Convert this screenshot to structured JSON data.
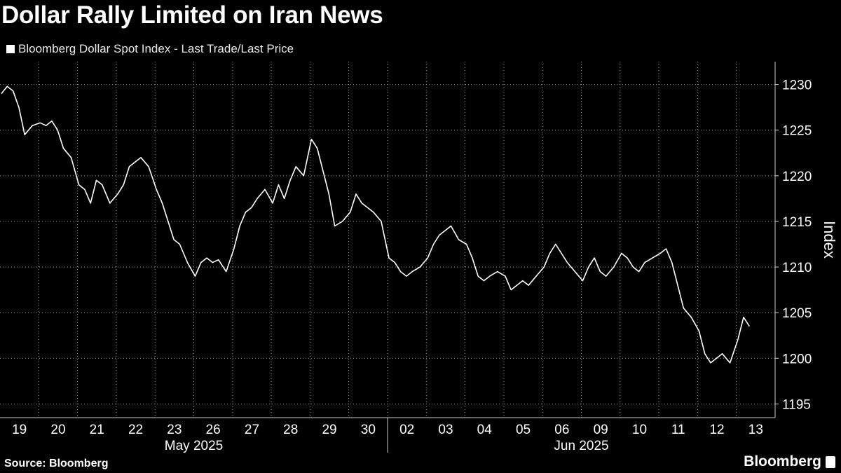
{
  "title": "Dollar Rally Limited on Iran News",
  "legend_label": "Bloomberg Dollar Spot Index - Last Trade/Last Price",
  "source": "Source: Bloomberg",
  "brand": "Bloomberg",
  "colors": {
    "background": "#000000",
    "line": "#ffffff",
    "grid": "#9a9a9a"
  },
  "chart_data": {
    "type": "line",
    "ylabel": "Index",
    "ylim": [
      1193.5,
      1232.5
    ],
    "yticks": [
      1195,
      1200,
      1205,
      1210,
      1215,
      1220,
      1225,
      1230
    ],
    "yaxis_side": "right",
    "grid": "dotted",
    "x_day_labels": [
      "19",
      "20",
      "21",
      "22",
      "23",
      "26",
      "27",
      "28",
      "29",
      "30",
      "02",
      "03",
      "04",
      "05",
      "06",
      "09",
      "10",
      "11",
      "12",
      "13"
    ],
    "month_labels": [
      {
        "label": "May 2025",
        "from_day": 0,
        "to_day": 9
      },
      {
        "label": "Jun 2025",
        "from_day": 10,
        "to_day": 19
      }
    ],
    "series": [
      {
        "values": [
          [
            0.0,
            1229.0
          ],
          [
            0.15,
            1229.8
          ],
          [
            0.3,
            1229.3
          ],
          [
            0.45,
            1227.5
          ],
          [
            0.6,
            1224.5
          ],
          [
            0.8,
            1225.5
          ],
          [
            1.0,
            1225.8
          ],
          [
            1.15,
            1225.5
          ],
          [
            1.3,
            1226.0
          ],
          [
            1.45,
            1225.0
          ],
          [
            1.6,
            1223.0
          ],
          [
            1.8,
            1222.0
          ],
          [
            2.0,
            1219.0
          ],
          [
            2.15,
            1218.5
          ],
          [
            2.3,
            1217.0
          ],
          [
            2.45,
            1219.5
          ],
          [
            2.6,
            1219.0
          ],
          [
            2.8,
            1217.0
          ],
          [
            3.0,
            1218.0
          ],
          [
            3.15,
            1219.0
          ],
          [
            3.3,
            1221.0
          ],
          [
            3.45,
            1221.5
          ],
          [
            3.6,
            1222.0
          ],
          [
            3.8,
            1221.0
          ],
          [
            4.0,
            1218.5
          ],
          [
            4.15,
            1217.0
          ],
          [
            4.3,
            1215.0
          ],
          [
            4.45,
            1213.0
          ],
          [
            4.6,
            1212.5
          ],
          [
            4.8,
            1210.5
          ],
          [
            5.0,
            1209.0
          ],
          [
            5.15,
            1210.5
          ],
          [
            5.3,
            1211.0
          ],
          [
            5.45,
            1210.5
          ],
          [
            5.6,
            1210.8
          ],
          [
            5.8,
            1209.5
          ],
          [
            6.0,
            1212.0
          ],
          [
            6.15,
            1214.5
          ],
          [
            6.3,
            1216.0
          ],
          [
            6.45,
            1216.5
          ],
          [
            6.6,
            1217.5
          ],
          [
            6.8,
            1218.5
          ],
          [
            7.0,
            1217.0
          ],
          [
            7.15,
            1219.0
          ],
          [
            7.3,
            1217.5
          ],
          [
            7.45,
            1219.5
          ],
          [
            7.6,
            1221.0
          ],
          [
            7.8,
            1220.0
          ],
          [
            8.0,
            1224.0
          ],
          [
            8.15,
            1223.0
          ],
          [
            8.3,
            1220.5
          ],
          [
            8.45,
            1218.0
          ],
          [
            8.6,
            1214.5
          ],
          [
            8.8,
            1215.0
          ],
          [
            9.0,
            1216.0
          ],
          [
            9.15,
            1218.0
          ],
          [
            9.3,
            1217.0
          ],
          [
            9.45,
            1216.5
          ],
          [
            9.6,
            1216.0
          ],
          [
            9.8,
            1215.0
          ],
          [
            10.0,
            1211.0
          ],
          [
            10.15,
            1210.5
          ],
          [
            10.3,
            1209.5
          ],
          [
            10.45,
            1209.0
          ],
          [
            10.6,
            1209.5
          ],
          [
            10.8,
            1210.0
          ],
          [
            11.0,
            1211.0
          ],
          [
            11.15,
            1212.5
          ],
          [
            11.3,
            1213.5
          ],
          [
            11.45,
            1214.0
          ],
          [
            11.6,
            1214.5
          ],
          [
            11.8,
            1213.0
          ],
          [
            12.0,
            1212.5
          ],
          [
            12.15,
            1211.0
          ],
          [
            12.3,
            1209.0
          ],
          [
            12.45,
            1208.5
          ],
          [
            12.6,
            1209.0
          ],
          [
            12.8,
            1209.5
          ],
          [
            13.0,
            1209.0
          ],
          [
            13.15,
            1207.5
          ],
          [
            13.3,
            1208.0
          ],
          [
            13.45,
            1208.5
          ],
          [
            13.6,
            1208.0
          ],
          [
            13.8,
            1209.0
          ],
          [
            14.0,
            1210.0
          ],
          [
            14.15,
            1211.5
          ],
          [
            14.3,
            1212.5
          ],
          [
            14.45,
            1211.5
          ],
          [
            14.6,
            1210.5
          ],
          [
            14.8,
            1209.5
          ],
          [
            15.0,
            1208.5
          ],
          [
            15.15,
            1210.0
          ],
          [
            15.3,
            1211.0
          ],
          [
            15.45,
            1209.5
          ],
          [
            15.6,
            1209.0
          ],
          [
            15.8,
            1210.0
          ],
          [
            16.0,
            1211.5
          ],
          [
            16.15,
            1211.0
          ],
          [
            16.3,
            1210.0
          ],
          [
            16.45,
            1209.5
          ],
          [
            16.6,
            1210.5
          ],
          [
            16.8,
            1211.0
          ],
          [
            17.0,
            1211.5
          ],
          [
            17.15,
            1212.0
          ],
          [
            17.3,
            1210.5
          ],
          [
            17.45,
            1208.0
          ],
          [
            17.6,
            1205.5
          ],
          [
            17.8,
            1204.5
          ],
          [
            18.0,
            1203.0
          ],
          [
            18.15,
            1200.5
          ],
          [
            18.3,
            1199.5
          ],
          [
            18.45,
            1200.0
          ],
          [
            18.6,
            1200.5
          ],
          [
            18.8,
            1199.5
          ],
          [
            19.0,
            1202.0
          ],
          [
            19.15,
            1204.5
          ],
          [
            19.3,
            1203.5
          ]
        ]
      }
    ]
  }
}
